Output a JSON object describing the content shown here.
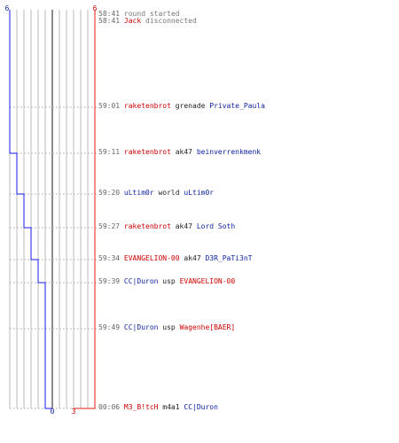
{
  "colors": {
    "blue_team": "#1a1aee",
    "red_team": "#ee1a1a",
    "grid": "#bbbbbb",
    "center_line": "#666666",
    "text_blue": "#0b1f9e",
    "text_red": "#cc0000",
    "text_gray": "#777777"
  },
  "chart_data": {
    "type": "line",
    "title": "",
    "blue_start_label": "6",
    "red_start_label": "6",
    "blue_end_label": "0",
    "red_end_label": "3",
    "series": [
      {
        "values": [
          6,
          6,
          5,
          4,
          3,
          2,
          1,
          1,
          1,
          1,
          0
        ]
      },
      {
        "values": [
          6,
          6,
          6,
          6,
          6,
          6,
          6,
          6,
          5,
          4,
          3
        ]
      }
    ]
  },
  "events": [
    {
      "time": "58:41",
      "action": "round started",
      "style": "system"
    },
    {
      "time": "58:41",
      "player": "Jack",
      "player_team": "red",
      "action": "disconnected",
      "style": "disconnect"
    },
    {
      "time": "59:01",
      "killer": "raketenbrot",
      "killer_team": "red",
      "weapon": "grenade",
      "victim": "Private_Paula",
      "victim_team": "blue"
    },
    {
      "time": "59:11",
      "killer": "raketenbrot",
      "killer_team": "red",
      "weapon": "ak47",
      "victim": "beinverrenkmenk",
      "victim_team": "blue"
    },
    {
      "time": "59:20",
      "killer": "uLtim0r",
      "killer_team": "blue",
      "weapon": "world",
      "victim": "uLtim0r",
      "victim_team": "blue"
    },
    {
      "time": "59:27",
      "killer": "raketenbrot",
      "killer_team": "red",
      "weapon": "ak47",
      "victim": "Lord Soth",
      "victim_team": "blue"
    },
    {
      "time": "59:34",
      "killer": "EVANGELION-00",
      "killer_team": "red",
      "weapon": "ak47",
      "victim": "D3R_PaTi3nT",
      "victim_team": "blue"
    },
    {
      "time": "59:39",
      "killer": "CC|Duron",
      "killer_team": "blue",
      "weapon": "usp",
      "victim": "EVANGELION-00",
      "victim_team": "red"
    },
    {
      "time": "59:49",
      "killer": "CC|Duron",
      "killer_team": "blue",
      "weapon": "usp",
      "victim": "Wagenhe[BAER]",
      "victim_team": "red"
    },
    {
      "time": "00:06",
      "killer": "M3_B!tcH",
      "killer_team": "red",
      "weapon": "m4a1",
      "victim": "CC|Duron",
      "victim_team": "blue"
    }
  ]
}
